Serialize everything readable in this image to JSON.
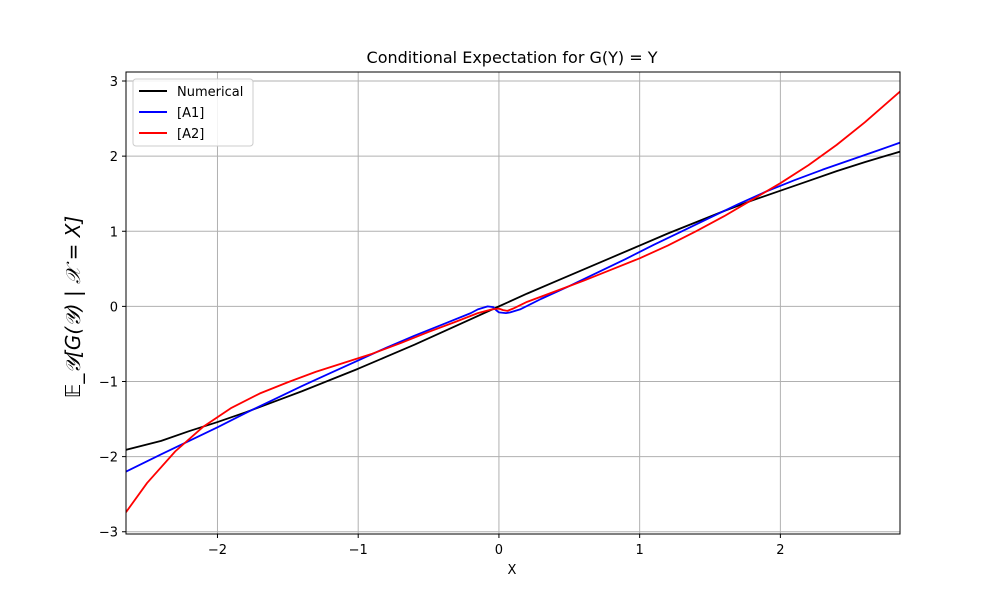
{
  "chart_data": {
    "type": "line",
    "title": "Conditional Expectation for G(Y) = Y",
    "xlabel": "X",
    "ylabel": "𝔼_𝒴[G(𝒴) | 𝒳 = X]",
    "xlim": [
      -2.65,
      2.85
    ],
    "ylim": [
      -3.03,
      3.12
    ],
    "xticks": [
      -2,
      -1,
      0,
      1,
      2
    ],
    "yticks": [
      -3,
      -2,
      -1,
      0,
      1,
      2,
      3
    ],
    "xtick_labels": [
      "−2",
      "−1",
      "0",
      "1",
      "2"
    ],
    "ytick_labels": [
      "−3",
      "−2",
      "−1",
      "0",
      "1",
      "2",
      "3"
    ],
    "grid": true,
    "legend_position": "upper-left",
    "series": [
      {
        "name": "Numerical",
        "color": "#000000",
        "points": [
          [
            -2.65,
            -1.91
          ],
          [
            -2.4,
            -1.79
          ],
          [
            -2.2,
            -1.66
          ],
          [
            -2.0,
            -1.54
          ],
          [
            -1.8,
            -1.41
          ],
          [
            -1.6,
            -1.27
          ],
          [
            -1.4,
            -1.13
          ],
          [
            -1.2,
            -0.98
          ],
          [
            -1.0,
            -0.83
          ],
          [
            -0.8,
            -0.67
          ],
          [
            -0.6,
            -0.51
          ],
          [
            -0.4,
            -0.34
          ],
          [
            -0.2,
            -0.17
          ],
          [
            0.0,
            0.0
          ],
          [
            0.2,
            0.17
          ],
          [
            0.4,
            0.33
          ],
          [
            0.6,
            0.49
          ],
          [
            0.8,
            0.65
          ],
          [
            1.0,
            0.81
          ],
          [
            1.2,
            0.97
          ],
          [
            1.4,
            1.12
          ],
          [
            1.6,
            1.27
          ],
          [
            1.8,
            1.41
          ],
          [
            2.0,
            1.54
          ],
          [
            2.2,
            1.67
          ],
          [
            2.4,
            1.8
          ],
          [
            2.6,
            1.92
          ],
          [
            2.85,
            2.06
          ]
        ]
      },
      {
        "name": "[A1]",
        "color": "#0000ff",
        "points": [
          [
            -2.65,
            -2.2
          ],
          [
            -2.4,
            -1.97
          ],
          [
            -2.2,
            -1.79
          ],
          [
            -2.0,
            -1.61
          ],
          [
            -1.8,
            -1.42
          ],
          [
            -1.6,
            -1.24
          ],
          [
            -1.4,
            -1.06
          ],
          [
            -1.2,
            -0.89
          ],
          [
            -1.0,
            -0.72
          ],
          [
            -0.8,
            -0.55
          ],
          [
            -0.6,
            -0.39
          ],
          [
            -0.4,
            -0.24
          ],
          [
            -0.2,
            -0.09
          ],
          [
            -0.15,
            -0.04
          ],
          [
            -0.08,
            0.0
          ],
          [
            -0.04,
            -0.01
          ],
          [
            -0.02,
            -0.05
          ],
          [
            0.0,
            -0.08
          ],
          [
            0.05,
            -0.09
          ],
          [
            0.08,
            -0.08
          ],
          [
            0.15,
            -0.04
          ],
          [
            0.3,
            0.1
          ],
          [
            0.5,
            0.27
          ],
          [
            0.7,
            0.45
          ],
          [
            0.9,
            0.63
          ],
          [
            1.1,
            0.82
          ],
          [
            1.3,
            1.0
          ],
          [
            1.5,
            1.18
          ],
          [
            1.7,
            1.36
          ],
          [
            1.9,
            1.53
          ],
          [
            2.1,
            1.68
          ],
          [
            2.3,
            1.82
          ],
          [
            2.5,
            1.95
          ],
          [
            2.7,
            2.08
          ],
          [
            2.85,
            2.18
          ]
        ]
      },
      {
        "name": "[A2]",
        "color": "#ff0000",
        "points": [
          [
            -2.65,
            -2.74
          ],
          [
            -2.5,
            -2.35
          ],
          [
            -2.3,
            -1.93
          ],
          [
            -2.1,
            -1.6
          ],
          [
            -1.9,
            -1.35
          ],
          [
            -1.7,
            -1.16
          ],
          [
            -1.5,
            -1.01
          ],
          [
            -1.3,
            -0.87
          ],
          [
            -1.1,
            -0.75
          ],
          [
            -0.9,
            -0.63
          ],
          [
            -0.7,
            -0.49
          ],
          [
            -0.5,
            -0.34
          ],
          [
            -0.3,
            -0.2
          ],
          [
            -0.15,
            -0.09
          ],
          [
            -0.05,
            -0.04
          ],
          [
            0.0,
            -0.03
          ],
          [
            0.03,
            -0.05
          ],
          [
            0.06,
            -0.06
          ],
          [
            0.1,
            -0.03
          ],
          [
            0.2,
            0.06
          ],
          [
            0.4,
            0.2
          ],
          [
            0.6,
            0.34
          ],
          [
            0.8,
            0.49
          ],
          [
            1.0,
            0.64
          ],
          [
            1.2,
            0.81
          ],
          [
            1.4,
            1.0
          ],
          [
            1.6,
            1.2
          ],
          [
            1.8,
            1.42
          ],
          [
            2.0,
            1.64
          ],
          [
            2.2,
            1.88
          ],
          [
            2.4,
            2.15
          ],
          [
            2.6,
            2.45
          ],
          [
            2.85,
            2.86
          ]
        ]
      }
    ]
  }
}
